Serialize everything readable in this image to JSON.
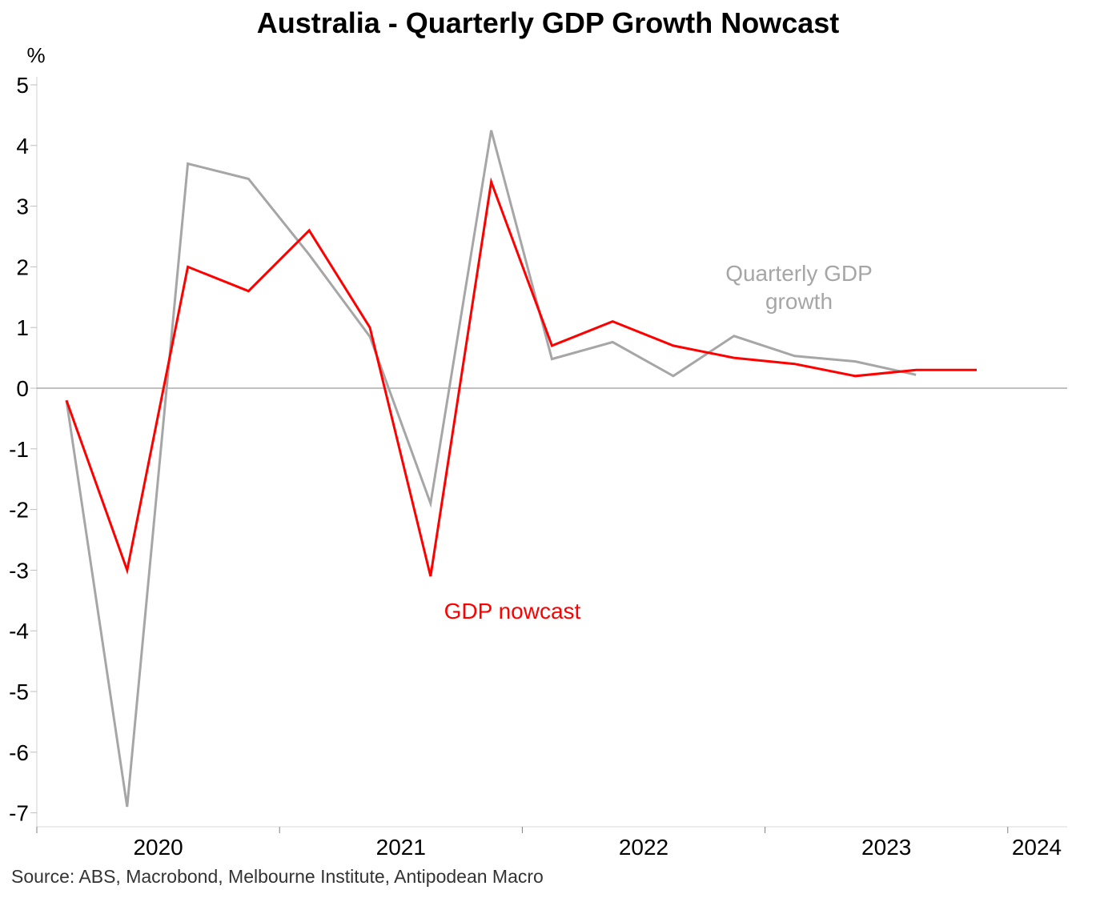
{
  "chart_data": {
    "type": "line",
    "title": "Australia - Quarterly GDP Growth Nowcast",
    "ylabel": "%",
    "xlabel": "",
    "ylim": [
      -7,
      5
    ],
    "yticks": [
      5,
      4,
      3,
      2,
      1,
      0,
      -1,
      -2,
      -3,
      -4,
      -5,
      -6,
      -7
    ],
    "x": [
      "2019-Q4",
      "2020-Q1",
      "2020-Q2",
      "2020-Q3",
      "2020-Q4",
      "2021-Q1",
      "2021-Q2",
      "2021-Q3",
      "2021-Q4",
      "2022-Q1",
      "2022-Q2",
      "2022-Q3",
      "2022-Q4",
      "2023-Q1",
      "2023-Q2",
      "2023-Q3"
    ],
    "xticks": [
      "2020",
      "2021",
      "2022",
      "2023",
      "2024"
    ],
    "grid": false,
    "series": [
      {
        "name": "Quarterly GDP growth",
        "color": "#a6a6a6",
        "values": [
          -0.2,
          -6.9,
          3.7,
          3.45,
          2.2,
          0.85,
          -1.9,
          4.25,
          0.48,
          0.76,
          0.2,
          0.86,
          0.53,
          0.44,
          0.22,
          null
        ]
      },
      {
        "name": "GDP nowcast",
        "color": "#ff0000",
        "values": [
          -0.2,
          -3.0,
          2.0,
          1.6,
          2.6,
          1.0,
          -3.1,
          3.4,
          0.7,
          1.1,
          0.7,
          0.5,
          0.4,
          0.2,
          0.3,
          0.3
        ]
      }
    ],
    "annotations": [
      {
        "text_lines": [
          "Quarterly GDP",
          "growth"
        ],
        "series": "Quarterly GDP growth"
      },
      {
        "text_lines": [
          "GDP nowcast"
        ],
        "series": "GDP nowcast"
      }
    ],
    "source": "Source: ABS, Macrobond, Melbourne Institute, Antipodean Macro"
  }
}
